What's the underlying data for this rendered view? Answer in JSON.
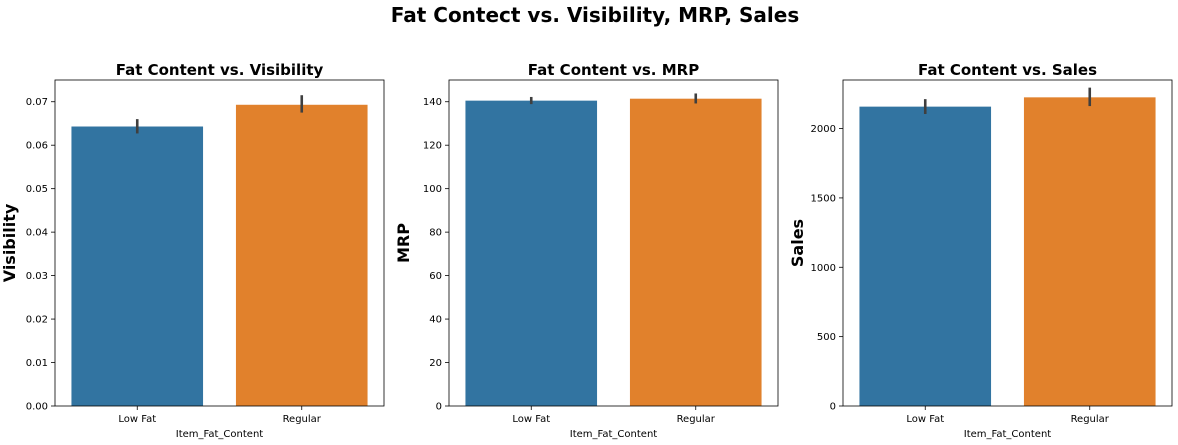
{
  "figure": {
    "suptitle": "Fat Contect vs. Visibility, MRP, Sales"
  },
  "colors": {
    "low_fat": "#3274a1",
    "regular": "#e1812c",
    "error_bar": "#3f3f3f",
    "axis": "#000000"
  },
  "chart_data": [
    {
      "type": "bar",
      "title": "Fat Content vs. Visibility",
      "xlabel": "Item_Fat_Content",
      "ylabel": "Visibility",
      "categories": [
        "Low Fat",
        "Regular"
      ],
      "values": [
        0.0643,
        0.0693
      ],
      "error_low": [
        0.0627,
        0.0675
      ],
      "error_high": [
        0.066,
        0.0715
      ],
      "ylim": [
        0,
        0.075
      ],
      "yticks": [
        0,
        0.01,
        0.02,
        0.03,
        0.04,
        0.05,
        0.06,
        0.07
      ],
      "ytick_labels": [
        "0.00",
        "0.01",
        "0.02",
        "0.03",
        "0.04",
        "0.05",
        "0.06",
        "0.07"
      ],
      "grid": false
    },
    {
      "type": "bar",
      "title": "Fat Content vs. MRP",
      "xlabel": "Item_Fat_Content",
      "ylabel": "MRP",
      "categories": [
        "Low Fat",
        "Regular"
      ],
      "values": [
        140.5,
        141.4
      ],
      "error_low": [
        138.9,
        139.2
      ],
      "error_high": [
        142.2,
        143.8
      ],
      "ylim": [
        0,
        150
      ],
      "yticks": [
        0,
        20,
        40,
        60,
        80,
        100,
        120,
        140
      ],
      "ytick_labels": [
        "0",
        "20",
        "40",
        "60",
        "80",
        "100",
        "120",
        "140"
      ],
      "grid": false
    },
    {
      "type": "bar",
      "title": "Fat Content vs. Sales",
      "xlabel": "Item_Fat_Content",
      "ylabel": "Sales",
      "categories": [
        "Low Fat",
        "Regular"
      ],
      "values": [
        2158,
        2225
      ],
      "error_low": [
        2105,
        2162
      ],
      "error_high": [
        2212,
        2295
      ],
      "ylim": [
        0,
        2350
      ],
      "yticks": [
        0,
        500,
        1000,
        1500,
        2000
      ],
      "ytick_labels": [
        "0",
        "500",
        "1000",
        "1500",
        "2000"
      ],
      "grid": false
    }
  ]
}
